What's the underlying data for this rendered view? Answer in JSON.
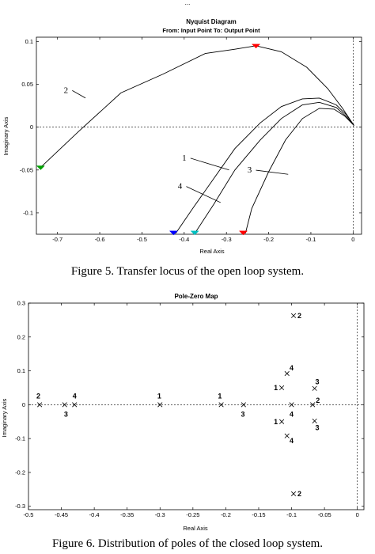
{
  "header_fragment": "...",
  "figure5": {
    "caption": "Figure 5. Transfer locus of the open loop system.",
    "chart_data": {
      "type": "line",
      "title": "Nyquist Diagram",
      "subtitle": "From: Input Point  To: Output Point",
      "xlabel": "Real Axis",
      "ylabel": "Imaginary Axis",
      "xlim": [
        -0.75,
        0.02
      ],
      "ylim": [
        -0.125,
        0.105
      ],
      "xticks": [
        -0.7,
        -0.6,
        -0.5,
        -0.4,
        -0.3,
        -0.2,
        -0.1,
        0
      ],
      "xtick_labels": [
        "-0.7",
        "-0.6",
        "-0.5",
        "-0.4",
        "-0.3",
        "-0.2",
        "-0.1",
        "0"
      ],
      "yticks": [
        -0.1,
        -0.05,
        0,
        0.05,
        0.1
      ],
      "ytick_labels": [
        "-0.1",
        "-0.05",
        "0",
        "0.05",
        "0.1"
      ],
      "reference_lines": {
        "y": 0,
        "x": 0,
        "style": "dashed"
      },
      "series": [
        {
          "name": "1",
          "color": "#0000ff",
          "x": [
            -0.42,
            -0.38,
            -0.33,
            -0.28,
            -0.22,
            -0.17,
            -0.12,
            -0.08,
            -0.04,
            -0.015,
            0.002
          ],
          "y": [
            -0.124,
            -0.095,
            -0.06,
            -0.025,
            0.005,
            0.024,
            0.033,
            0.034,
            0.026,
            0.014,
            0.002
          ]
        },
        {
          "name": "2",
          "color": "#ff0000",
          "x": [
            -0.74,
            -0.65,
            -0.55,
            -0.45,
            -0.35,
            -0.28,
            -0.23,
            -0.17,
            -0.11,
            -0.06,
            -0.025,
            0.002
          ],
          "y": [
            -0.047,
            -0.005,
            0.04,
            0.062,
            0.086,
            0.091,
            0.095,
            0.088,
            0.07,
            0.045,
            0.022,
            0.002
          ]
        },
        {
          "name": "3",
          "color": "#ff0000",
          "x": [
            -0.255,
            -0.24,
            -0.2,
            -0.16,
            -0.12,
            -0.08,
            -0.045,
            -0.02,
            0.002
          ],
          "y": [
            -0.124,
            -0.095,
            -0.052,
            -0.015,
            0.01,
            0.022,
            0.021,
            0.013,
            0.002
          ]
        },
        {
          "name": "4",
          "color": "#00bfbf",
          "x": [
            -0.375,
            -0.33,
            -0.28,
            -0.22,
            -0.17,
            -0.12,
            -0.08,
            -0.04,
            -0.015,
            0.002
          ],
          "y": [
            -0.124,
            -0.09,
            -0.05,
            -0.015,
            0.01,
            0.026,
            0.029,
            0.023,
            0.012,
            0.002
          ]
        }
      ],
      "curve_labels": [
        {
          "label": "1",
          "x": -0.4,
          "y": -0.039,
          "tx": -0.29,
          "ty": -0.05
        },
        {
          "label": "2",
          "x": -0.68,
          "y": 0.04,
          "tx": -0.63,
          "ty": 0.034
        },
        {
          "label": "3",
          "x": -0.245,
          "y": -0.053,
          "tx": -0.15,
          "ty": -0.055
        },
        {
          "label": "4",
          "x": -0.41,
          "y": -0.072,
          "tx": -0.31,
          "ty": -0.088
        }
      ],
      "arrows": [
        {
          "series": "1",
          "x": -0.425,
          "y": -0.123,
          "color": "#0000ff"
        },
        {
          "series": "2",
          "x": -0.74,
          "y": -0.047,
          "color": "#00a000"
        },
        {
          "series": "2",
          "x": -0.23,
          "y": 0.095,
          "color": "#ff0000"
        },
        {
          "series": "3",
          "x": -0.26,
          "y": -0.123,
          "color": "#ff0000"
        },
        {
          "series": "4",
          "x": -0.375,
          "y": -0.123,
          "color": "#00bfbf"
        }
      ]
    }
  },
  "figure6": {
    "caption": "Figure 6.  Distribution of poles of the closed loop system.",
    "chart_data": {
      "type": "scatter",
      "title": "Pole-Zero Map",
      "xlabel": "Real Axis",
      "ylabel": "Imaginary Axis",
      "xlim": [
        -0.5,
        0.01
      ],
      "ylim": [
        -0.31,
        0.3
      ],
      "xticks": [
        -0.5,
        -0.45,
        -0.4,
        -0.35,
        -0.3,
        -0.25,
        -0.2,
        -0.15,
        -0.1,
        -0.05,
        0
      ],
      "xtick_labels": [
        "-0.5",
        "-0.45",
        "-0.4",
        "-0.35",
        "-0.3",
        "-0.25",
        "-0.2",
        "-0.15",
        "-0.1",
        "-0.05",
        "0"
      ],
      "yticks": [
        -0.3,
        -0.2,
        -0.1,
        0,
        0.1,
        0.2,
        0.3
      ],
      "ytick_labels": [
        "-0.3",
        "-0.2",
        "-0.1",
        "0",
        "0.1",
        "0.2",
        "0.3"
      ],
      "reference_lines": {
        "y": 0,
        "x": 0,
        "style": "dashed"
      },
      "marker": "x",
      "poles": [
        {
          "x": -0.483,
          "y": 0,
          "label": "2",
          "lx": -0.485,
          "ly": 0.025
        },
        {
          "x": -0.445,
          "y": 0,
          "label": "3",
          "lx": -0.443,
          "ly": -0.028
        },
        {
          "x": -0.43,
          "y": 0,
          "label": "4",
          "lx": -0.43,
          "ly": 0.025
        },
        {
          "x": -0.3,
          "y": 0,
          "label": "1",
          "lx": -0.301,
          "ly": 0.025
        },
        {
          "x": -0.207,
          "y": 0,
          "label": "1",
          "lx": -0.209,
          "ly": 0.025
        },
        {
          "x": -0.173,
          "y": 0,
          "label": "3",
          "lx": -0.174,
          "ly": -0.028
        },
        {
          "x": -0.115,
          "y": 0.05,
          "label": "1",
          "lx": -0.124,
          "ly": 0.05
        },
        {
          "x": -0.115,
          "y": -0.05,
          "label": "1",
          "lx": -0.124,
          "ly": -0.05
        },
        {
          "x": -0.107,
          "y": 0.092,
          "label": "4",
          "lx": -0.1,
          "ly": 0.108
        },
        {
          "x": -0.107,
          "y": -0.092,
          "label": "4",
          "lx": -0.1,
          "ly": -0.107
        },
        {
          "x": -0.1,
          "y": 0,
          "label": "4",
          "lx": -0.1,
          "ly": -0.028
        },
        {
          "x": -0.097,
          "y": 0.263,
          "label": "2",
          "lx": -0.088,
          "ly": 0.263
        },
        {
          "x": -0.097,
          "y": -0.263,
          "label": "2",
          "lx": -0.088,
          "ly": -0.263
        },
        {
          "x": -0.065,
          "y": 0.048,
          "label": "3",
          "lx": -0.061,
          "ly": 0.068
        },
        {
          "x": -0.065,
          "y": -0.048,
          "label": "3",
          "lx": -0.061,
          "ly": -0.068
        },
        {
          "x": -0.068,
          "y": 0,
          "label": "2",
          "lx": -0.06,
          "ly": 0.012
        }
      ]
    }
  }
}
